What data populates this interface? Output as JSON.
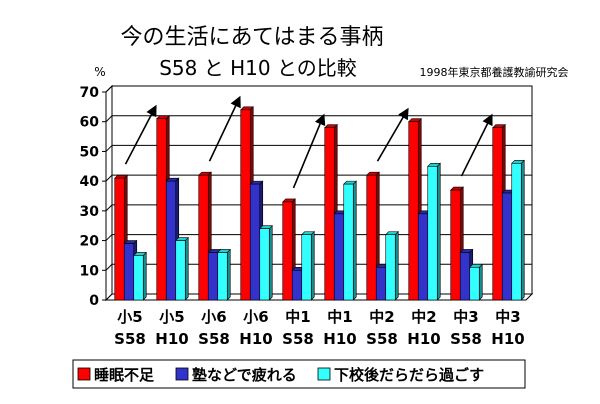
{
  "chart_data": {
    "type": "bar",
    "title_line1": "今の生活にあてはまる事柄",
    "title_line2": "S58 と H10 との比較",
    "source": "1998年東京都養護教諭研究会",
    "ylabel": "%",
    "ylim": [
      0,
      70
    ],
    "yticks": [
      0,
      10,
      20,
      30,
      40,
      50,
      60,
      70
    ],
    "grid": true,
    "legend_position": "bottom",
    "categories": [
      {
        "top": "小5",
        "bottom": "S58"
      },
      {
        "top": "小5",
        "bottom": "H10"
      },
      {
        "top": "小6",
        "bottom": "S58"
      },
      {
        "top": "小6",
        "bottom": "H10"
      },
      {
        "top": "中1",
        "bottom": "S58"
      },
      {
        "top": "中1",
        "bottom": "H10"
      },
      {
        "top": "中2",
        "bottom": "S58"
      },
      {
        "top": "中2",
        "bottom": "H10"
      },
      {
        "top": "中3",
        "bottom": "S58"
      },
      {
        "top": "中3",
        "bottom": "H10"
      }
    ],
    "series": [
      {
        "name": "睡眠不足",
        "color": "#ff0000",
        "values": [
          41,
          61,
          42,
          64,
          33,
          58,
          42,
          60,
          37,
          58
        ]
      },
      {
        "name": "塾などで疲れる",
        "color": "#3333cc",
        "values": [
          19,
          40,
          16,
          39,
          10,
          29,
          11,
          29,
          16,
          36
        ]
      },
      {
        "name": "下校後だらだら過ごす",
        "color": "#33ffff",
        "values": [
          15,
          20,
          16,
          24,
          22,
          39,
          22,
          45,
          11,
          46
        ]
      }
    ],
    "annotations": {
      "arrows": [
        {
          "from_category": 0,
          "to_category": 1,
          "series": "睡眠不足"
        },
        {
          "from_category": 2,
          "to_category": 3,
          "series": "睡眠不足"
        },
        {
          "from_category": 4,
          "to_category": 5,
          "series": "睡眠不足"
        },
        {
          "from_category": 6,
          "to_category": 7,
          "series": "睡眠不足"
        },
        {
          "from_category": 8,
          "to_category": 9,
          "series": "睡眠不足"
        }
      ]
    }
  }
}
